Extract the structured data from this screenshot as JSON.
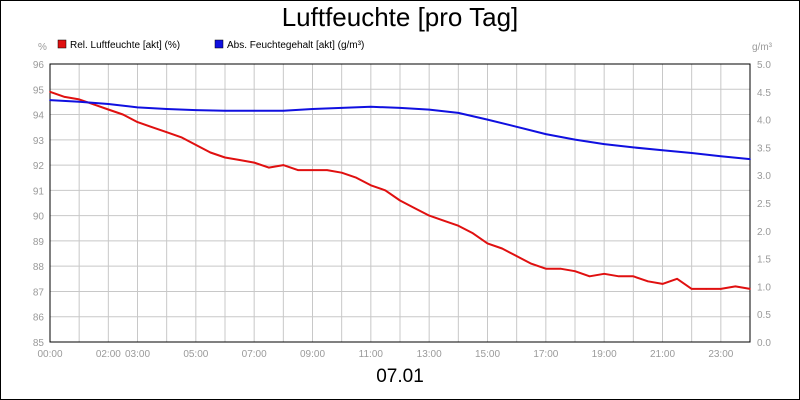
{
  "chart_data": {
    "type": "line",
    "title": "Luftfeuchte [pro Tag]",
    "date_label": "07.01",
    "y_left": {
      "unit": "%",
      "min": 85,
      "max": 96,
      "ticks": [
        96,
        95,
        94,
        93,
        92,
        91,
        90,
        89,
        88,
        87,
        86,
        85
      ]
    },
    "y_right": {
      "unit": "g/m³",
      "min": 0,
      "max": 5,
      "ticks": [
        "5.0",
        "4.5",
        "4.0",
        "3.5",
        "3.0",
        "2.5",
        "2.0",
        "1.5",
        "1.0",
        "0.5",
        "0.0"
      ]
    },
    "x_tick_labels": [
      "00:00",
      "02:00",
      "03:00",
      "05:00",
      "07:00",
      "09:00",
      "11:00",
      "13:00",
      "15:00",
      "17:00",
      "19:00",
      "21:00",
      "23:00"
    ],
    "x_tick_hours": [
      0,
      2,
      3,
      5,
      7,
      9,
      11,
      13,
      15,
      17,
      19,
      21,
      23
    ],
    "x_range_hours": [
      0,
      24
    ],
    "grid": true,
    "legend_position": "top-left",
    "series": [
      {
        "name": "Rel. Luftfeuchte [akt] (%)",
        "axis": "left",
        "color": "#e01010",
        "points": [
          [
            0,
            94.9
          ],
          [
            0.5,
            94.7
          ],
          [
            1,
            94.6
          ],
          [
            1.5,
            94.4
          ],
          [
            2,
            94.2
          ],
          [
            2.5,
            94.0
          ],
          [
            3,
            93.7
          ],
          [
            3.5,
            93.5
          ],
          [
            4,
            93.3
          ],
          [
            4.5,
            93.1
          ],
          [
            5,
            92.8
          ],
          [
            5.5,
            92.5
          ],
          [
            6,
            92.3
          ],
          [
            6.5,
            92.2
          ],
          [
            7,
            92.1
          ],
          [
            7.5,
            91.9
          ],
          [
            8,
            92.0
          ],
          [
            8.5,
            91.8
          ],
          [
            9,
            91.8
          ],
          [
            9.5,
            91.8
          ],
          [
            10,
            91.7
          ],
          [
            10.5,
            91.5
          ],
          [
            11,
            91.2
          ],
          [
            11.5,
            91.0
          ],
          [
            12,
            90.6
          ],
          [
            12.5,
            90.3
          ],
          [
            13,
            90.0
          ],
          [
            13.5,
            89.8
          ],
          [
            14,
            89.6
          ],
          [
            14.5,
            89.3
          ],
          [
            15,
            88.9
          ],
          [
            15.5,
            88.7
          ],
          [
            16,
            88.4
          ],
          [
            16.5,
            88.1
          ],
          [
            17,
            87.9
          ],
          [
            17.5,
            87.9
          ],
          [
            18,
            87.8
          ],
          [
            18.5,
            87.6
          ],
          [
            19,
            87.7
          ],
          [
            19.5,
            87.6
          ],
          [
            20,
            87.6
          ],
          [
            20.5,
            87.4
          ],
          [
            21,
            87.3
          ],
          [
            21.5,
            87.5
          ],
          [
            22,
            87.1
          ],
          [
            22.5,
            87.1
          ],
          [
            23,
            87.1
          ],
          [
            23.5,
            87.2
          ],
          [
            24,
            87.1
          ]
        ]
      },
      {
        "name": "Abs. Feuchtegehalt [akt] (g/m³)",
        "axis": "right",
        "color": "#1010e0",
        "points": [
          [
            0,
            4.35
          ],
          [
            1,
            4.32
          ],
          [
            2,
            4.28
          ],
          [
            3,
            4.22
          ],
          [
            4,
            4.19
          ],
          [
            5,
            4.17
          ],
          [
            6,
            4.16
          ],
          [
            7,
            4.16
          ],
          [
            8,
            4.16
          ],
          [
            9,
            4.19
          ],
          [
            10,
            4.21
          ],
          [
            11,
            4.23
          ],
          [
            12,
            4.21
          ],
          [
            13,
            4.18
          ],
          [
            14,
            4.12
          ],
          [
            15,
            4.0
          ],
          [
            16,
            3.87
          ],
          [
            17,
            3.74
          ],
          [
            18,
            3.64
          ],
          [
            19,
            3.56
          ],
          [
            20,
            3.5
          ],
          [
            21,
            3.45
          ],
          [
            22,
            3.4
          ],
          [
            23,
            3.34
          ],
          [
            24,
            3.29
          ]
        ]
      }
    ]
  }
}
